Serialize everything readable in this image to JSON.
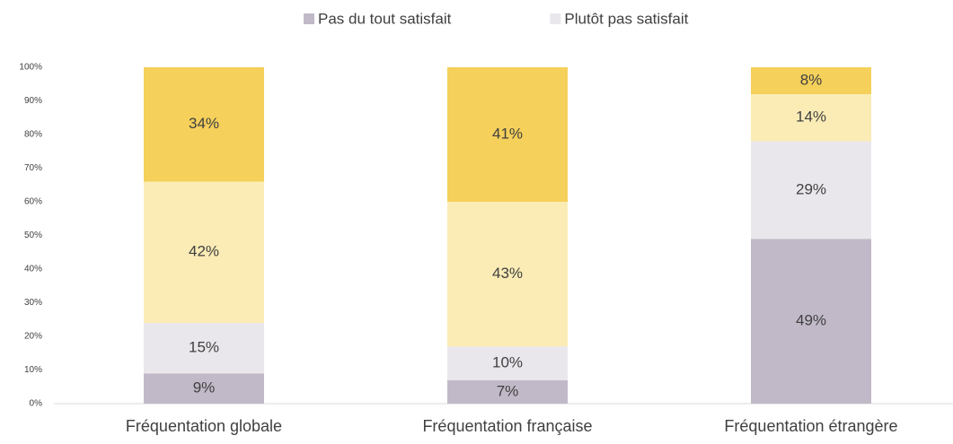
{
  "chart_data": {
    "type": "stacked_bar",
    "categories": [
      "Fréquentation globale",
      "Fréquentation française",
      "Fréquentation étrangère"
    ],
    "series": [
      {
        "name": "Pas du tout satisfait",
        "color": "#c1b9c8",
        "values": [
          9,
          7,
          49
        ],
        "value_labels": [
          "9%",
          "7%",
          "49%"
        ]
      },
      {
        "name": "Plutôt pas satisfait",
        "color": "#eae7ec",
        "values": [
          15,
          10,
          29
        ],
        "value_labels": [
          "15%",
          "10%",
          "29%"
        ]
      },
      {
        "color": "#fbecb6",
        "values": [
          42,
          43,
          14
        ],
        "value_labels": [
          "42%",
          "43%",
          "14%"
        ]
      },
      {
        "color": "#f5d05b",
        "values": [
          34,
          41,
          8
        ],
        "value_labels": [
          "34%",
          "41%",
          "8%"
        ]
      }
    ],
    "ylim": [
      0,
      100
    ],
    "yticks": [
      {
        "value": 0,
        "label": "0%"
      },
      {
        "value": 10,
        "label": "10%"
      },
      {
        "value": 20,
        "label": "20%"
      },
      {
        "value": 30,
        "label": "30%"
      },
      {
        "value": 40,
        "label": "40%"
      },
      {
        "value": 50,
        "label": "50%"
      },
      {
        "value": 60,
        "label": "60%"
      },
      {
        "value": 70,
        "label": "70%"
      },
      {
        "value": 80,
        "label": "80%"
      },
      {
        "value": 90,
        "label": "90%"
      },
      {
        "value": 100,
        "label": "100%"
      }
    ],
    "legend": "top"
  }
}
